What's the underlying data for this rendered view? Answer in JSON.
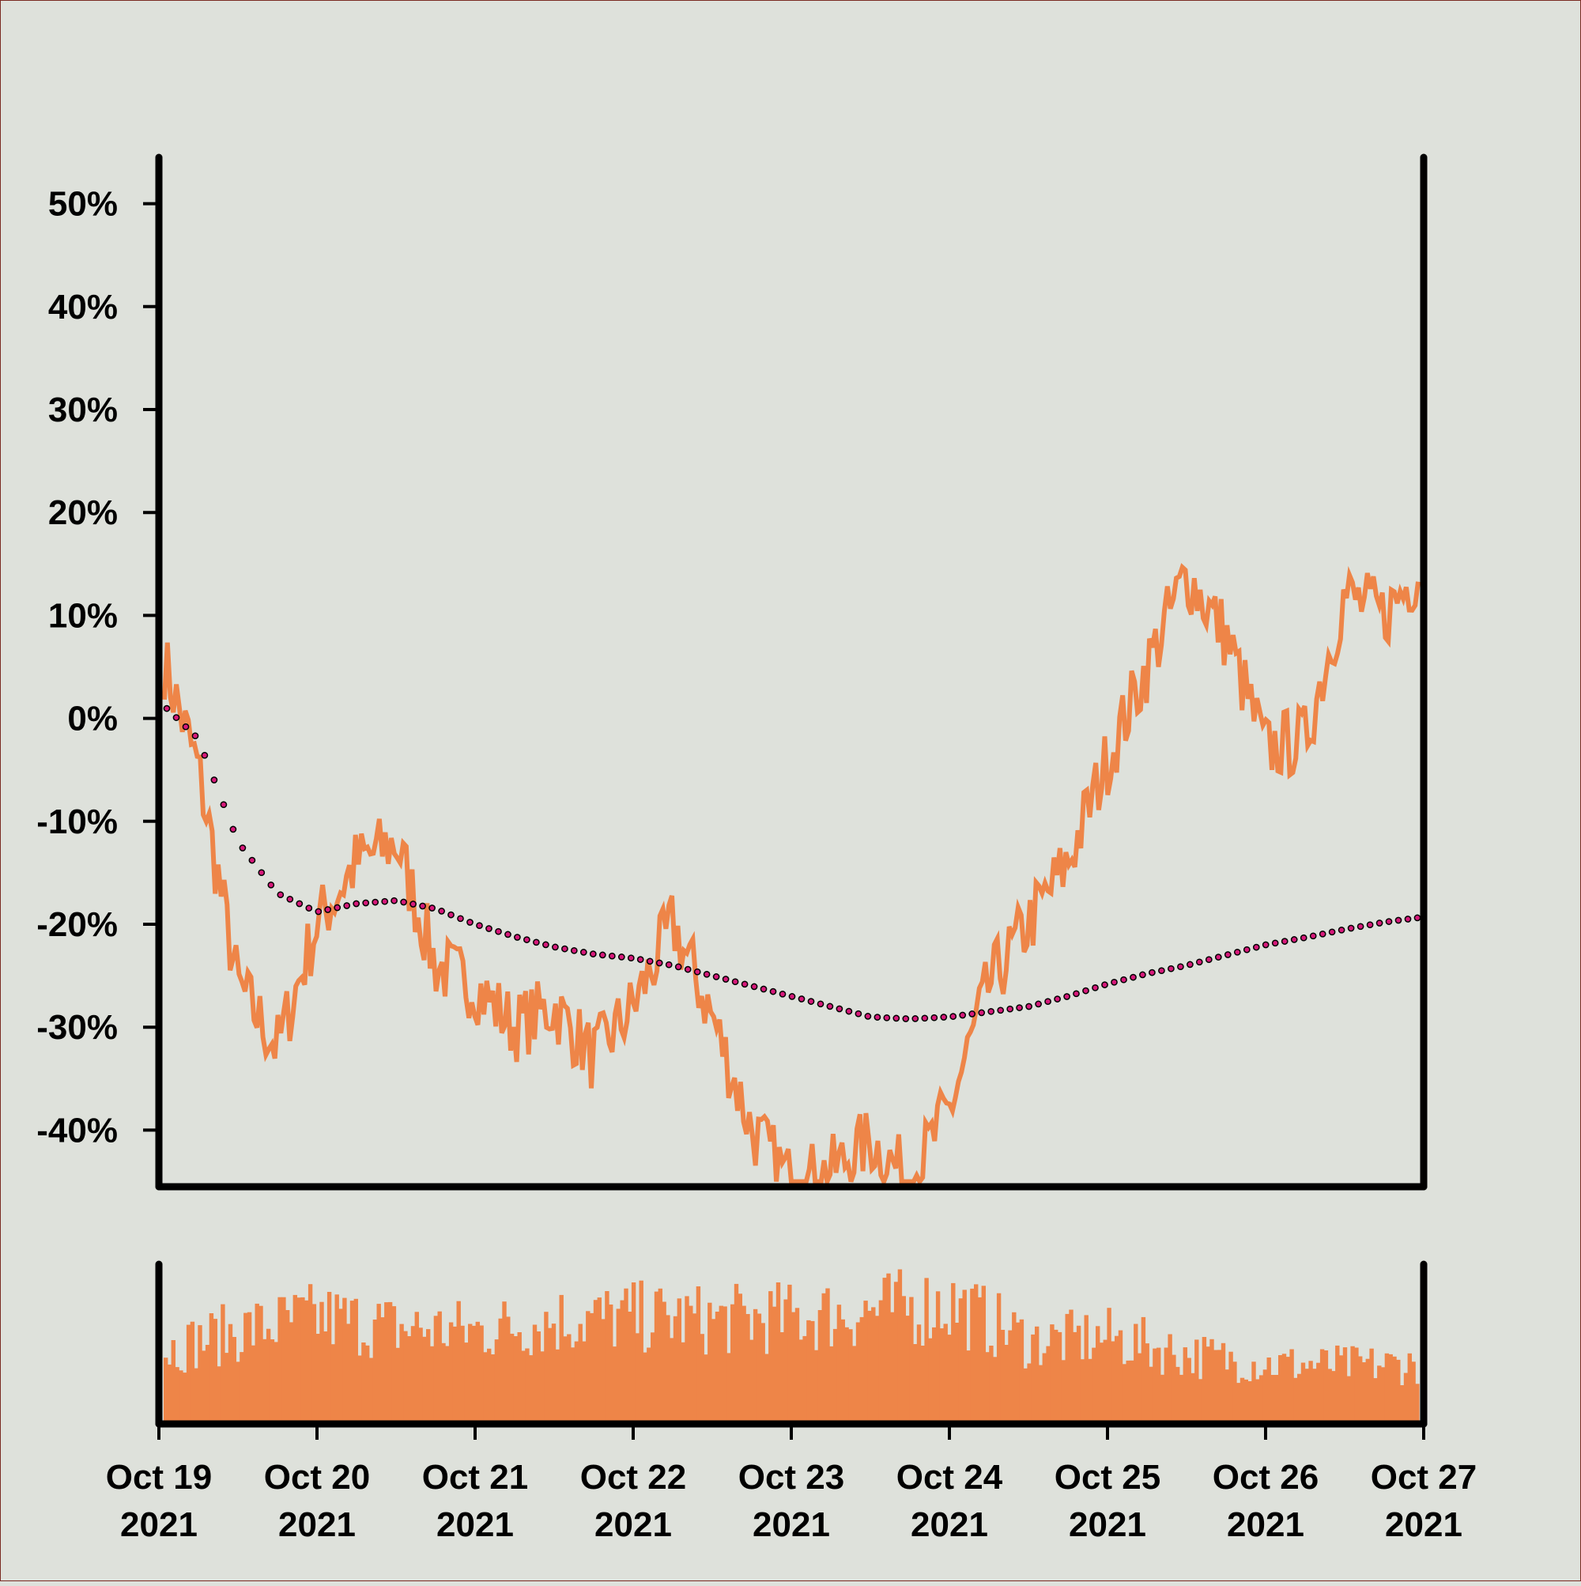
{
  "chart_data": {
    "type": "line",
    "title": "",
    "xlabel": "",
    "ylabel": "",
    "ylim": [
      -45.5,
      54.5
    ],
    "y_tick_values": [
      -40,
      -30,
      -20,
      -10,
      0,
      10,
      20,
      30,
      40,
      50
    ],
    "y_tick_labels": [
      "-40%",
      "-30%",
      "-20%",
      "-10%",
      "0%",
      "10%",
      "20%",
      "30%",
      "40%",
      "50%"
    ],
    "x_range": [
      "2021-10-19",
      "2021-10-27"
    ],
    "x_ticks": [
      {
        "date": "2021-10-19",
        "line1": "Oct 19",
        "line2": "2021"
      },
      {
        "date": "2021-10-20",
        "line1": "Oct 20",
        "line2": "2021"
      },
      {
        "date": "2021-10-21",
        "line1": "Oct 21",
        "line2": "2021"
      },
      {
        "date": "2021-10-22",
        "line1": "Oct 22",
        "line2": "2021"
      },
      {
        "date": "2021-10-23",
        "line1": "Oct 23",
        "line2": "2021"
      },
      {
        "date": "2021-10-24",
        "line1": "Oct 24",
        "line2": "2021"
      },
      {
        "date": "2021-10-25",
        "line1": "Oct 25",
        "line2": "2021"
      },
      {
        "date": "2021-10-26",
        "line1": "Oct 26",
        "line2": "2021"
      },
      {
        "date": "2021-10-27",
        "line1": "Oct 27",
        "line2": "2021"
      }
    ],
    "grid": false,
    "legend": "none",
    "colors": {
      "background": "#dee1db",
      "price": "#ee8548",
      "moving_average": "#d6197a",
      "volume": "#ee8548",
      "axis": "#000000"
    },
    "series": [
      {
        "style": "line",
        "x": [
          "2021-10-19 00:00",
          "2021-10-19 06:00",
          "2021-10-19 12:00",
          "2021-10-19 18:00",
          "2021-10-20 00:00",
          "2021-10-20 06:00",
          "2021-10-20 12:00",
          "2021-10-20 18:00",
          "2021-10-21 00:00",
          "2021-10-21 06:00",
          "2021-10-21 12:00",
          "2021-10-21 18:00",
          "2021-10-22 00:00",
          "2021-10-22 06:00",
          "2021-10-22 12:00",
          "2021-10-22 18:00",
          "2021-10-23 00:00",
          "2021-10-23 06:00",
          "2021-10-23 12:00",
          "2021-10-23 18:00",
          "2021-10-24 00:00",
          "2021-10-24 06:00",
          "2021-10-24 12:00",
          "2021-10-24 18:00",
          "2021-10-25 00:00",
          "2021-10-25 06:00",
          "2021-10-25 12:00",
          "2021-10-25 18:00",
          "2021-10-26 00:00",
          "2021-10-26 06:00",
          "2021-10-26 12:00",
          "2021-10-26 18:00",
          "2021-10-27 00:00"
        ],
        "values": [
          7,
          -5,
          -26,
          -32,
          -20,
          -14,
          -12,
          -24,
          -26,
          -30,
          -28,
          -33,
          -28,
          -20,
          -29,
          -40,
          -45,
          -44,
          -41,
          -45,
          -38,
          -26,
          -20,
          -14,
          -4,
          5,
          14,
          8,
          -3,
          -2,
          12,
          10,
          15
        ]
      },
      {
        "style": "dotted",
        "x": [
          "2021-10-19 00:00",
          "2021-10-19 06:00",
          "2021-10-19 12:00",
          "2021-10-19 18:00",
          "2021-10-20 00:00",
          "2021-10-20 06:00",
          "2021-10-20 12:00",
          "2021-10-20 18:00",
          "2021-10-21 00:00",
          "2021-10-21 06:00",
          "2021-10-21 12:00",
          "2021-10-21 18:00",
          "2021-10-22 00:00",
          "2021-10-22 06:00",
          "2021-10-22 12:00",
          "2021-10-22 18:00",
          "2021-10-23 00:00",
          "2021-10-23 06:00",
          "2021-10-23 12:00",
          "2021-10-23 18:00",
          "2021-10-24 00:00",
          "2021-10-24 06:00",
          "2021-10-24 12:00",
          "2021-10-24 18:00",
          "2021-10-25 00:00",
          "2021-10-25 06:00",
          "2021-10-25 12:00",
          "2021-10-25 18:00",
          "2021-10-26 00:00",
          "2021-10-26 06:00",
          "2021-10-26 12:00",
          "2021-10-26 18:00",
          "2021-10-27 00:00"
        ],
        "values": [
          1.7,
          -2,
          -12,
          -17,
          -18.8,
          -18,
          -17.7,
          -18.5,
          -20,
          -21.2,
          -22.2,
          -22.9,
          -23.3,
          -24,
          -25,
          -26,
          -27,
          -28,
          -29,
          -29.2,
          -29,
          -28.5,
          -28,
          -27,
          -25.8,
          -24.8,
          -24,
          -23,
          -22,
          -21.3,
          -20.5,
          -19.8,
          -19.3
        ]
      }
    ],
    "volume": {
      "x": [
        "2021-10-19",
        "2021-10-19 12:00",
        "2021-10-20",
        "2021-10-20 12:00",
        "2021-10-21",
        "2021-10-21 12:00",
        "2021-10-22",
        "2021-10-22 12:00",
        "2021-10-23",
        "2021-10-23 12:00",
        "2021-10-24",
        "2021-10-24 12:00",
        "2021-10-25",
        "2021-10-25 12:00",
        "2021-10-26",
        "2021-10-26 12:00",
        "2021-10-27"
      ],
      "relative_values": [
        0.55,
        0.7,
        0.8,
        0.72,
        0.7,
        0.78,
        0.8,
        0.78,
        0.8,
        0.85,
        0.9,
        0.62,
        0.65,
        0.52,
        0.45,
        0.44,
        0.45
      ]
    }
  }
}
